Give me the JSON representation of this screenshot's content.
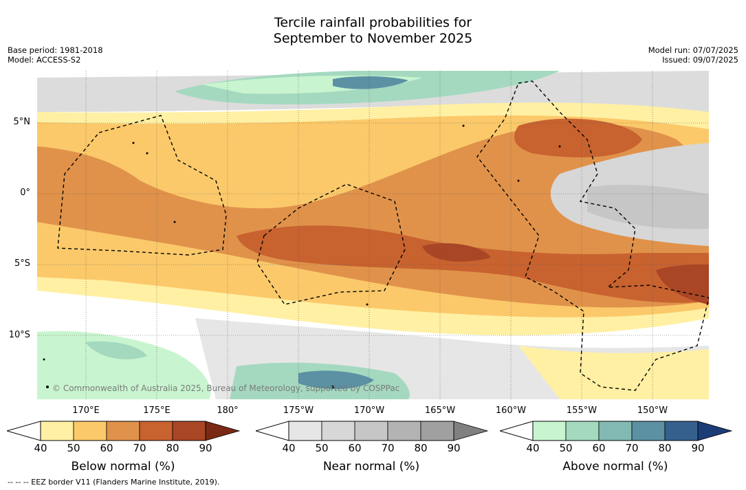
{
  "title_line1": "Tercile rainfall probabilities for",
  "title_line2": "September to November 2025",
  "meta_left": {
    "base_period": "Base period: 1981-2018",
    "model": "Model: ACCESS-S2"
  },
  "meta_right": {
    "model_run": "Model run: 07/07/2025",
    "issued": "Issued: 09/07/2025"
  },
  "lat_labels": [
    "5°N",
    "0°",
    "5°S",
    "10°S"
  ],
  "lon_labels": [
    "170°E",
    "175°E",
    "180°",
    "175°W",
    "170°W",
    "165°W",
    "160°W",
    "155°W",
    "150°W"
  ],
  "copyright": "© Commonwealth of Australia 2025, Bureau of Meteorology, supported by COSPPac",
  "footnote": "--  --  -- EEZ border V11 (Flanders Marine Institute, 2019).",
  "colorbars": [
    {
      "title": "Below normal (%)",
      "ticks": [
        "40",
        "50",
        "60",
        "70",
        "80",
        "90"
      ],
      "colors": [
        "#fff0a3",
        "#fbc96a",
        "#e0924a",
        "#c8622f",
        "#a84626",
        "#7a2a14"
      ]
    },
    {
      "title": "Near normal (%)",
      "ticks": [
        "40",
        "50",
        "60",
        "70",
        "80",
        "90"
      ],
      "colors": [
        "#e6e6e6",
        "#d7d7d7",
        "#c6c6c6",
        "#b3b3b3",
        "#a0a0a0",
        "#808080"
      ]
    },
    {
      "title": "Above normal (%)",
      "ticks": [
        "40",
        "50",
        "60",
        "70",
        "80",
        "90"
      ],
      "colors": [
        "#c8f5cf",
        "#a4d9bf",
        "#82b9b2",
        "#5b91a3",
        "#35608e",
        "#1c3c78"
      ]
    }
  ]
}
